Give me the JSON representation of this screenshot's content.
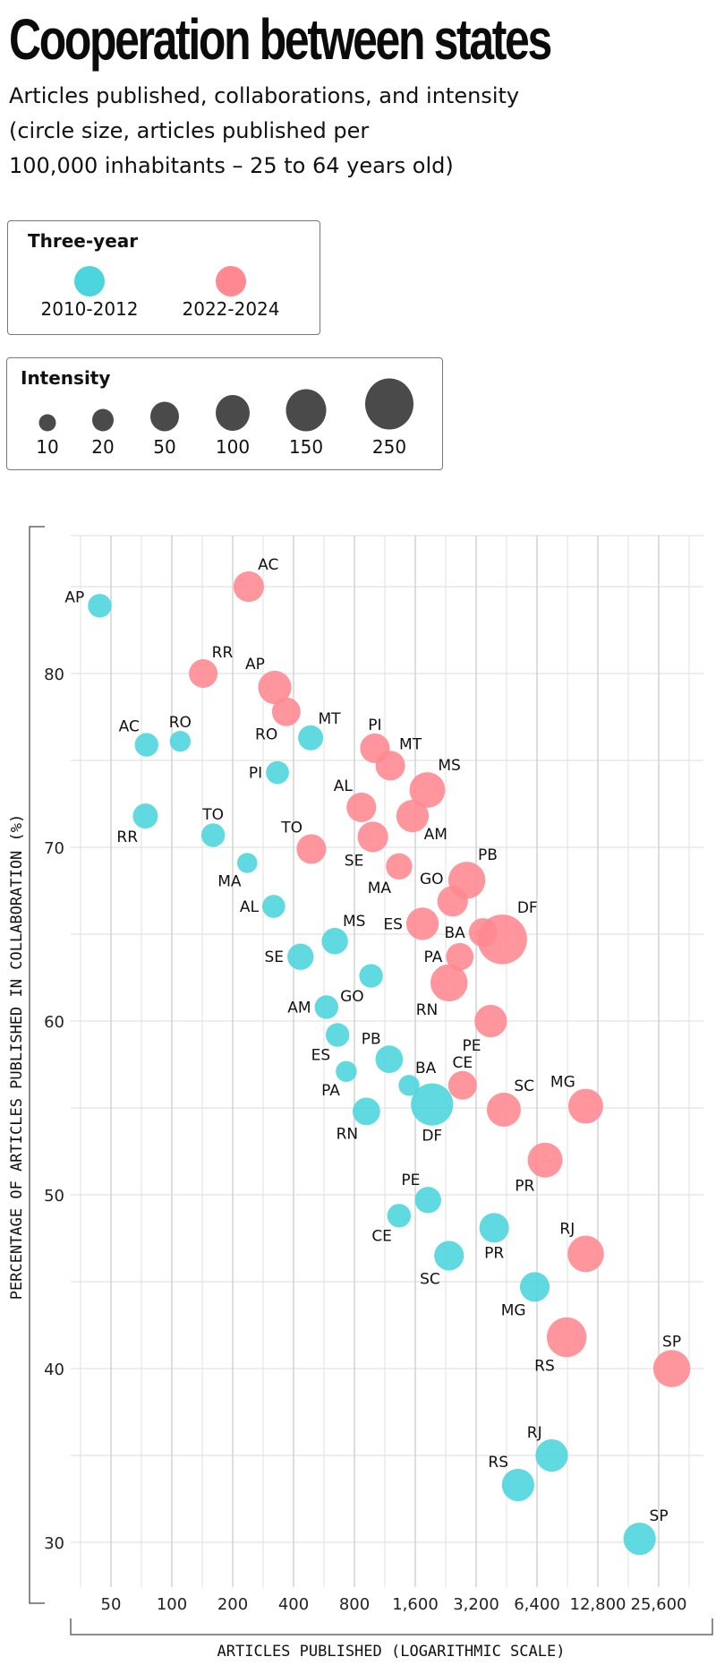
{
  "title": "Cooperation between states",
  "subtitle": "Articles published, collaborations, and intensity (circle size, articles published per 100,000 inhabitants – 25 to 64 years old)",
  "subtitle_lines": [
    "Articles published, collaborations, and intensity",
    "(circle size, articles published per",
    "100,000 inhabitants – 25 to 64 years old)"
  ],
  "legend_period": {
    "title": "Three-year",
    "items": [
      {
        "label": "2010-2012",
        "color": "#4dd5dd"
      },
      {
        "label": "2022-2024",
        "color": "#ff8891"
      }
    ]
  },
  "legend_intensity": {
    "title": "Intensity",
    "color": "#4a4a4a",
    "items": [
      {
        "label": "10",
        "value": 10
      },
      {
        "label": "20",
        "value": 20
      },
      {
        "label": "50",
        "value": 50
      },
      {
        "label": "100",
        "value": 100
      },
      {
        "label": "150",
        "value": 150
      },
      {
        "label": "250",
        "value": 250
      }
    ]
  },
  "chart_data": {
    "type": "scatter",
    "title": "Cooperation between states",
    "xlabel": "ARTICLES PUBLISHED (LOGARITHMIC SCALE)",
    "ylabel": "PERCENTAGE OF ARTICLES PUBLISHED IN COLLABORATION (%)",
    "x_scale": "log2",
    "x_ticks": [
      50,
      100,
      200,
      400,
      800,
      1600,
      3200,
      6400,
      12800,
      25600
    ],
    "x_tick_labels": [
      "50",
      "100",
      "200",
      "400",
      "800",
      "1,600",
      "3,200",
      "6,400",
      "12,800",
      "25,600"
    ],
    "xlim": [
      35,
      36200
    ],
    "y_ticks": [
      30,
      40,
      50,
      60,
      70,
      80
    ],
    "y_tick_labels": [
      "30",
      "40",
      "50",
      "60",
      "70",
      "80"
    ],
    "ylim": [
      27.4,
      88
    ],
    "grid": true,
    "size_encoding": "Intensity (articles published per 100,000 inhabitants aged 25-64)",
    "series": [
      {
        "name": "2010-2012",
        "color": "#4dd5dd",
        "points": [
          {
            "label": "AP",
            "x": 44,
            "y": 83.9,
            "intensity": 20
          },
          {
            "label": "AC",
            "x": 75,
            "y": 75.9,
            "intensity": 20
          },
          {
            "label": "RO",
            "x": 110,
            "y": 76.1,
            "intensity": 12
          },
          {
            "label": "RR",
            "x": 74,
            "y": 71.8,
            "intensity": 25
          },
          {
            "label": "TO",
            "x": 160,
            "y": 70.7,
            "intensity": 20
          },
          {
            "label": "MA",
            "x": 236,
            "y": 69.1,
            "intensity": 10
          },
          {
            "label": "MT",
            "x": 486,
            "y": 76.3,
            "intensity": 25
          },
          {
            "label": "PI",
            "x": 333,
            "y": 74.3,
            "intensity": 18
          },
          {
            "label": "AL",
            "x": 319,
            "y": 66.6,
            "intensity": 18
          },
          {
            "label": "MS",
            "x": 640,
            "y": 64.6,
            "intensity": 30
          },
          {
            "label": "SE",
            "x": 433,
            "y": 63.7,
            "intensity": 30
          },
          {
            "label": "GO",
            "x": 967,
            "y": 62.6,
            "intensity": 20
          },
          {
            "label": "AM",
            "x": 582,
            "y": 60.8,
            "intensity": 20
          },
          {
            "label": "ES",
            "x": 660,
            "y": 59.2,
            "intensity": 20
          },
          {
            "label": "PB",
            "x": 1189,
            "y": 57.8,
            "intensity": 35
          },
          {
            "label": "PA",
            "x": 729,
            "y": 57.1,
            "intensity": 12
          },
          {
            "label": "BA",
            "x": 1490,
            "y": 56.3,
            "intensity": 12
          },
          {
            "label": "DF",
            "x": 1937,
            "y": 55.2,
            "intensity": 130
          },
          {
            "label": "RN",
            "x": 917,
            "y": 54.8,
            "intensity": 35
          },
          {
            "label": "PE",
            "x": 1850,
            "y": 49.7,
            "intensity": 30
          },
          {
            "label": "CE",
            "x": 1330,
            "y": 48.8,
            "intensity": 20
          },
          {
            "label": "PR",
            "x": 3930,
            "y": 48.1,
            "intensity": 45
          },
          {
            "label": "SC",
            "x": 2350,
            "y": 46.5,
            "intensity": 45
          },
          {
            "label": "MG",
            "x": 6240,
            "y": 44.7,
            "intensity": 45
          },
          {
            "label": "RJ",
            "x": 7570,
            "y": 35.0,
            "intensity": 60
          },
          {
            "label": "RS",
            "x": 5160,
            "y": 33.3,
            "intensity": 60
          },
          {
            "label": "SP",
            "x": 20600,
            "y": 30.2,
            "intensity": 60
          }
        ]
      },
      {
        "name": "2022-2024",
        "color": "#ff8891",
        "points": [
          {
            "label": "AC",
            "x": 240,
            "y": 85.0,
            "intensity": 50
          },
          {
            "label": "RR",
            "x": 143,
            "y": 80.0,
            "intensity": 40
          },
          {
            "label": "AP",
            "x": 323,
            "y": 79.2,
            "intensity": 65
          },
          {
            "label": "RO",
            "x": 368,
            "y": 77.8,
            "intensity": 40
          },
          {
            "label": "PI",
            "x": 1010,
            "y": 75.7,
            "intensity": 45
          },
          {
            "label": "MT",
            "x": 1204,
            "y": 74.7,
            "intensity": 45
          },
          {
            "label": "MS",
            "x": 1835,
            "y": 73.3,
            "intensity": 80
          },
          {
            "label": "AL",
            "x": 866,
            "y": 72.3,
            "intensity": 45
          },
          {
            "label": "AM",
            "x": 1551,
            "y": 71.8,
            "intensity": 60
          },
          {
            "label": "TO",
            "x": 490,
            "y": 69.9,
            "intensity": 45
          },
          {
            "label": "SE",
            "x": 987,
            "y": 70.6,
            "intensity": 50
          },
          {
            "label": "MA",
            "x": 1330,
            "y": 68.9,
            "intensity": 30
          },
          {
            "label": "PB",
            "x": 2878,
            "y": 68.1,
            "intensity": 90
          },
          {
            "label": "GO",
            "x": 2450,
            "y": 66.9,
            "intensity": 50
          },
          {
            "label": "ES",
            "x": 1737,
            "y": 65.6,
            "intensity": 60
          },
          {
            "label": "BA",
            "x": 3463,
            "y": 65.1,
            "intensity": 40
          },
          {
            "label": "DF",
            "x": 4310,
            "y": 64.7,
            "intensity": 200
          },
          {
            "label": "PA",
            "x": 2656,
            "y": 63.7,
            "intensity": 35
          },
          {
            "label": "RN",
            "x": 2350,
            "y": 62.2,
            "intensity": 90
          },
          {
            "label": "PE",
            "x": 3780,
            "y": 60.0,
            "intensity": 60
          },
          {
            "label": "CE",
            "x": 2740,
            "y": 56.3,
            "intensity": 40
          },
          {
            "label": "SC",
            "x": 4385,
            "y": 54.9,
            "intensity": 70
          },
          {
            "label": "MG",
            "x": 11150,
            "y": 55.1,
            "intensity": 75
          },
          {
            "label": "PR",
            "x": 7020,
            "y": 52.0,
            "intensity": 75
          },
          {
            "label": "RJ",
            "x": 11150,
            "y": 46.6,
            "intensity": 85
          },
          {
            "label": "RS",
            "x": 8970,
            "y": 41.8,
            "intensity": 110
          },
          {
            "label": "SP",
            "x": 29700,
            "y": 40.0,
            "intensity": 90
          }
        ]
      }
    ]
  }
}
